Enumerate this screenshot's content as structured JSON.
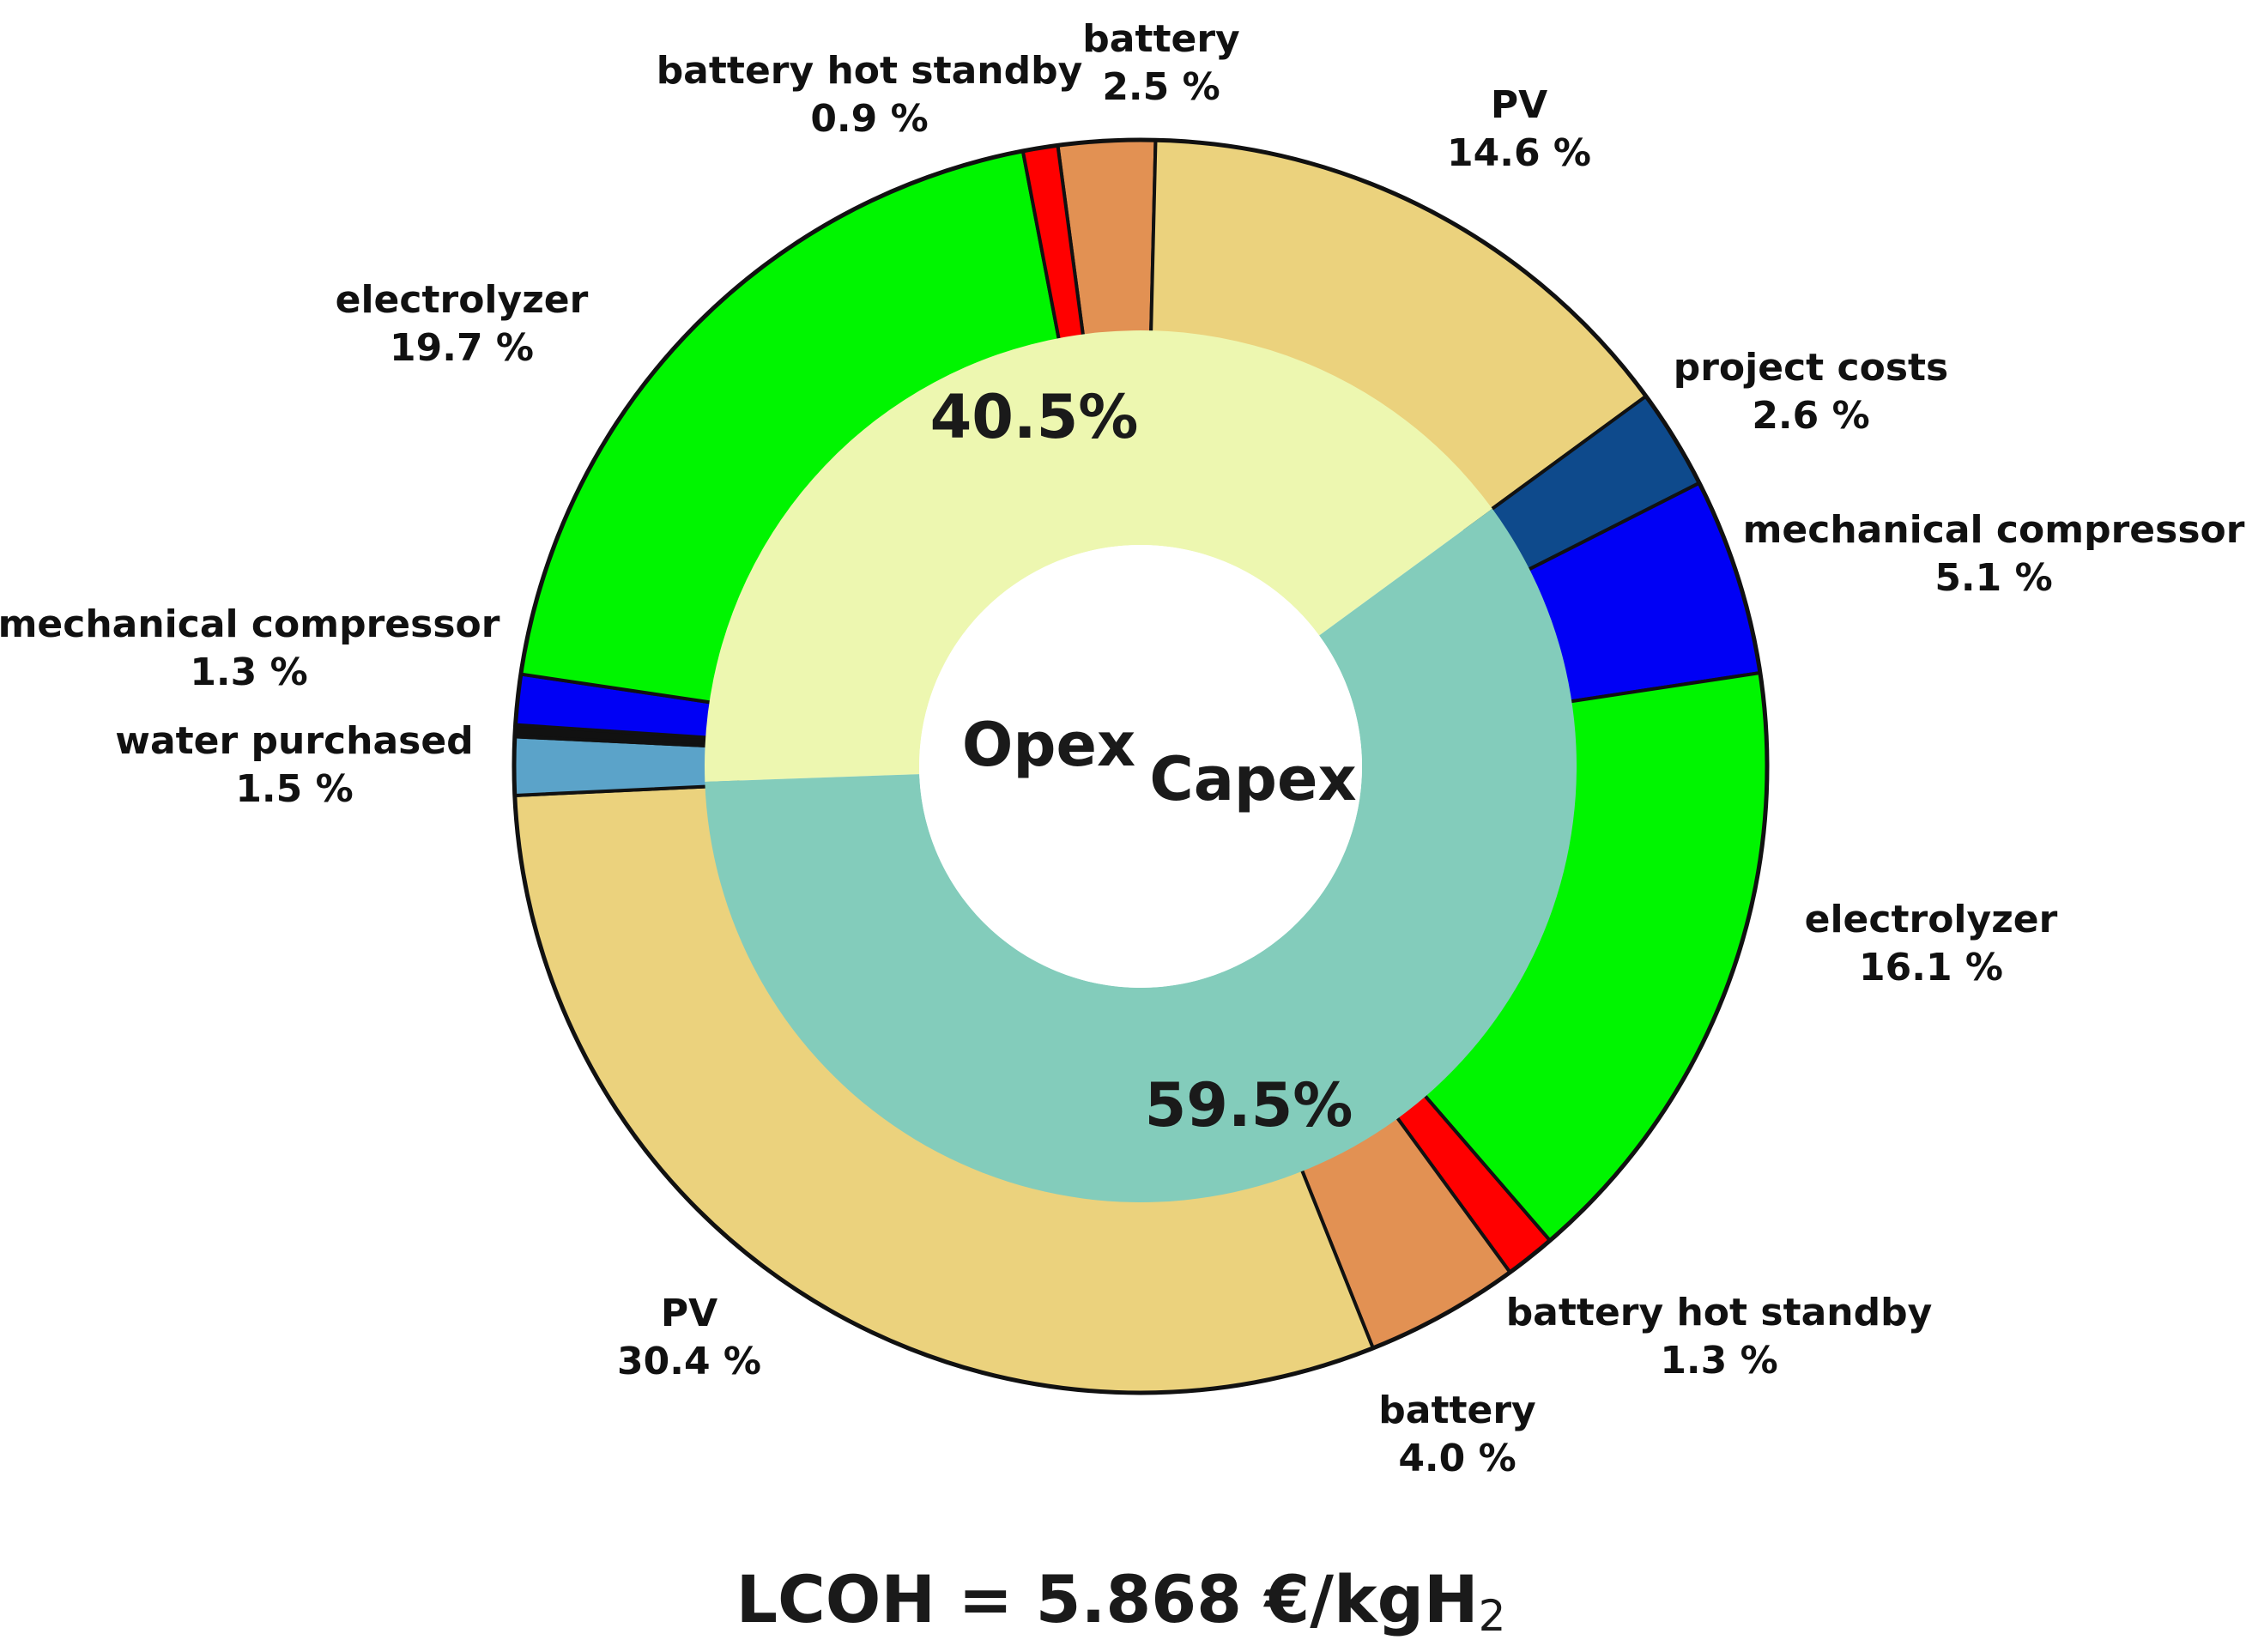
{
  "chart_data": {
    "type": "pie",
    "subtype": "nested-donut",
    "inner_ring": [
      {
        "name": "Opex",
        "label": "Opex",
        "pct_label": "40.5%",
        "value": 40.5,
        "color": "#EDF7B0"
      },
      {
        "name": "Capex",
        "label": "Capex",
        "pct_label": "59.5%",
        "value": 59.5,
        "color": "#83CCBB"
      }
    ],
    "outer_ring": [
      {
        "group": "Opex",
        "name": "battery",
        "value": 2.5,
        "pct_label": "2.5 %",
        "color": "#E29153"
      },
      {
        "group": "Opex",
        "name": "PV",
        "value": 14.6,
        "pct_label": "14.6 %",
        "color": "#EBD27D"
      },
      {
        "group": "Capex",
        "name": "project costs",
        "value": 2.6,
        "pct_label": "2.6 %",
        "color": "#0E4A8C"
      },
      {
        "group": "Capex",
        "name": "mechanical compressor",
        "value": 5.1,
        "pct_label": "5.1 %",
        "color": "#0000F5"
      },
      {
        "group": "Capex",
        "name": "electrolyzer",
        "value": 16.1,
        "pct_label": "16.1 %",
        "color": "#00F500"
      },
      {
        "group": "Capex",
        "name": "battery hot standby",
        "value": 1.3,
        "pct_label": "1.3 %",
        "color": "#FF0000"
      },
      {
        "group": "Capex",
        "name": "battery",
        "value": 4.0,
        "pct_label": "4.0 %",
        "color": "#E29153"
      },
      {
        "group": "Capex",
        "name": "PV",
        "value": 30.4,
        "pct_label": "30.4 %",
        "color": "#EBD27D"
      },
      {
        "group": "Opex",
        "name": "water purchased",
        "value": 1.5,
        "pct_label": "1.5 %",
        "color": "#5BA3C9"
      },
      {
        "group": "Opex",
        "name": "",
        "value": 0.3,
        "pct_label": "",
        "color": "#111111"
      },
      {
        "group": "Opex",
        "name": "mechanical compressor",
        "value": 1.3,
        "pct_label": "1.3 %",
        "color": "#0000F5"
      },
      {
        "group": "Opex",
        "name": "electrolyzer",
        "value": 19.7,
        "pct_label": "19.7 %",
        "color": "#00F500"
      },
      {
        "group": "Opex",
        "name": "battery hot standby",
        "value": 0.9,
        "pct_label": "0.9 %",
        "color": "#FF0000"
      }
    ],
    "lcoh": {
      "prefix": "LCOH = 5.868 €/kgH",
      "subscript": "2"
    }
  }
}
